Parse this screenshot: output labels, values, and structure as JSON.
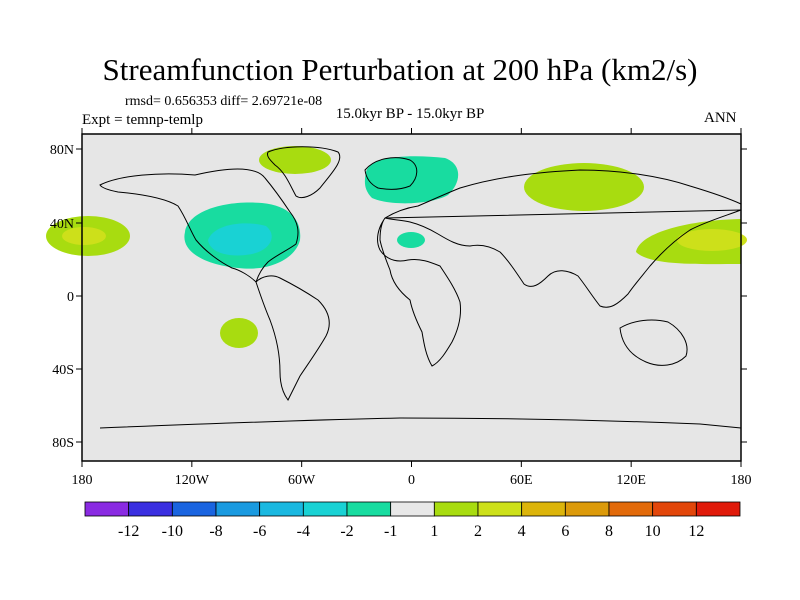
{
  "title": "Streamfunction Perturbation at 200 hPa (km2/s)",
  "stats": "rmsd= 0.656353 diff= 2.69721e-08",
  "subtitle": "15.0kyr BP - 15.0kyr BP",
  "experiment": "Expt = temnp-temlp",
  "season": "ANN",
  "lat_ticks": [
    "80N",
    "40N",
    "0",
    "40S",
    "80S"
  ],
  "lon_ticks": [
    "180",
    "120W",
    "60W",
    "0",
    "60E",
    "120E",
    "180"
  ],
  "colorbar": {
    "colors": [
      "#8a2be2",
      "#3a2fe0",
      "#1a64e0",
      "#1a9ae0",
      "#1ab8e0",
      "#19d2d4",
      "#18dca0",
      "#e8e8e8",
      "#a8dc10",
      "#cde01a",
      "#dcb40a",
      "#dc9a0a",
      "#e26a0a",
      "#e2460a",
      "#e01a0a"
    ],
    "labels": [
      "-12",
      "-10",
      "-8",
      "-6",
      "-4",
      "-2",
      "-1",
      "1",
      "2",
      "4",
      "6",
      "8",
      "10",
      "12"
    ]
  }
}
